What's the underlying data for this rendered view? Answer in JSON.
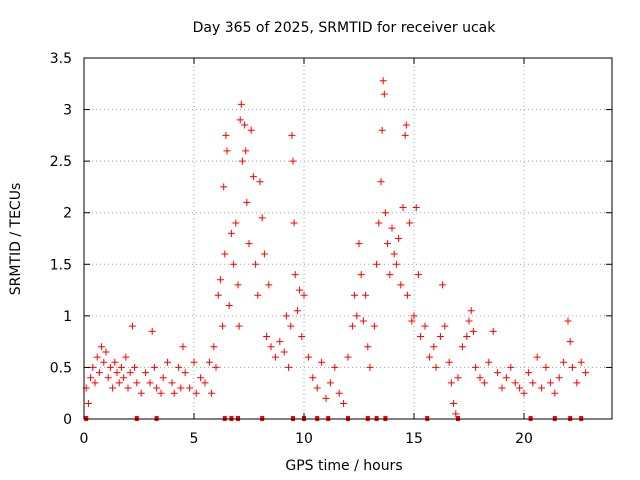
{
  "chart_data": {
    "type": "scatter",
    "title": "Day 365 of 2025, SRMTID for receiver ucak",
    "xlabel": "GPS time / hours",
    "ylabel": "SRMTID / TECUs",
    "xlim": [
      0,
      24
    ],
    "ylim": [
      0,
      3.5
    ],
    "xticks": [
      0,
      5,
      10,
      15,
      20
    ],
    "xtick_labels": [
      "0",
      "5",
      "10",
      "15",
      "20"
    ],
    "yticks": [
      0,
      0.5,
      1,
      1.5,
      2,
      2.5,
      3,
      3.5
    ],
    "ytick_labels": [
      "0",
      "0.5",
      "1",
      "1.5",
      "2",
      "2.5",
      "3",
      "3.5"
    ],
    "grid": true,
    "marker": "+",
    "series": [
      {
        "name": "SRMTID",
        "color": "#ff0000",
        "points": [
          [
            0.1,
            0.3
          ],
          [
            0.2,
            0.15
          ],
          [
            0.3,
            0.4
          ],
          [
            0.4,
            0.5
          ],
          [
            0.5,
            0.35
          ],
          [
            0.6,
            0.6
          ],
          [
            0.7,
            0.45
          ],
          [
            0.8,
            0.7
          ],
          [
            0.9,
            0.55
          ],
          [
            1.0,
            0.65
          ],
          [
            1.1,
            0.4
          ],
          [
            1.2,
            0.5
          ],
          [
            1.3,
            0.3
          ],
          [
            1.4,
            0.55
          ],
          [
            1.5,
            0.45
          ],
          [
            1.6,
            0.35
          ],
          [
            1.7,
            0.5
          ],
          [
            1.8,
            0.4
          ],
          [
            1.9,
            0.6
          ],
          [
            2.0,
            0.3
          ],
          [
            2.1,
            0.45
          ],
          [
            2.2,
            0.9
          ],
          [
            2.3,
            0.5
          ],
          [
            2.4,
            0.35
          ],
          [
            2.6,
            0.25
          ],
          [
            2.8,
            0.45
          ],
          [
            3.0,
            0.35
          ],
          [
            3.1,
            0.85
          ],
          [
            3.2,
            0.5
          ],
          [
            3.3,
            0.3
          ],
          [
            3.5,
            0.25
          ],
          [
            3.6,
            0.4
          ],
          [
            3.8,
            0.55
          ],
          [
            4.0,
            0.35
          ],
          [
            4.1,
            0.25
          ],
          [
            4.3,
            0.5
          ],
          [
            4.4,
            0.3
          ],
          [
            4.5,
            0.7
          ],
          [
            4.6,
            0.45
          ],
          [
            4.8,
            0.3
          ],
          [
            5.0,
            0.55
          ],
          [
            5.1,
            0.25
          ],
          [
            5.3,
            0.4
          ],
          [
            5.5,
            0.35
          ],
          [
            5.7,
            0.55
          ],
          [
            5.8,
            0.25
          ],
          [
            5.9,
            0.7
          ],
          [
            6.0,
            0.5
          ],
          [
            6.1,
            1.2
          ],
          [
            6.2,
            1.35
          ],
          [
            6.3,
            0.9
          ],
          [
            6.35,
            2.25
          ],
          [
            6.4,
            1.6
          ],
          [
            6.45,
            2.75
          ],
          [
            6.5,
            2.6
          ],
          [
            6.6,
            1.1
          ],
          [
            6.7,
            1.8
          ],
          [
            6.8,
            1.5
          ],
          [
            6.9,
            1.9
          ],
          [
            7.0,
            1.3
          ],
          [
            7.05,
            0.9
          ],
          [
            7.1,
            2.9
          ],
          [
            7.15,
            3.05
          ],
          [
            7.2,
            2.5
          ],
          [
            7.3,
            2.85
          ],
          [
            7.35,
            2.6
          ],
          [
            7.4,
            2.1
          ],
          [
            7.5,
            1.7
          ],
          [
            7.6,
            2.8
          ],
          [
            7.7,
            2.35
          ],
          [
            7.8,
            1.5
          ],
          [
            7.9,
            1.2
          ],
          [
            8.0,
            2.3
          ],
          [
            8.1,
            1.95
          ],
          [
            8.2,
            1.6
          ],
          [
            8.3,
            0.8
          ],
          [
            8.4,
            1.3
          ],
          [
            8.5,
            0.7
          ],
          [
            8.7,
            0.6
          ],
          [
            8.9,
            0.75
          ],
          [
            9.1,
            0.65
          ],
          [
            9.2,
            1.0
          ],
          [
            9.3,
            0.5
          ],
          [
            9.4,
            0.9
          ],
          [
            9.45,
            2.75
          ],
          [
            9.5,
            2.5
          ],
          [
            9.55,
            1.9
          ],
          [
            9.6,
            1.4
          ],
          [
            9.7,
            1.05
          ],
          [
            9.8,
            1.25
          ],
          [
            9.9,
            0.8
          ],
          [
            10.0,
            1.2
          ],
          [
            10.2,
            0.6
          ],
          [
            10.4,
            0.4
          ],
          [
            10.6,
            0.3
          ],
          [
            10.8,
            0.55
          ],
          [
            11.0,
            0.2
          ],
          [
            11.2,
            0.35
          ],
          [
            11.4,
            0.5
          ],
          [
            11.6,
            0.25
          ],
          [
            11.8,
            0.15
          ],
          [
            12.0,
            0.6
          ],
          [
            12.2,
            0.9
          ],
          [
            12.3,
            1.2
          ],
          [
            12.4,
            1.0
          ],
          [
            12.5,
            1.7
          ],
          [
            12.6,
            1.4
          ],
          [
            12.7,
            0.95
          ],
          [
            12.8,
            1.2
          ],
          [
            12.9,
            0.7
          ],
          [
            13.0,
            0.5
          ],
          [
            13.2,
            0.9
          ],
          [
            13.3,
            1.5
          ],
          [
            13.4,
            1.9
          ],
          [
            13.5,
            2.3
          ],
          [
            13.55,
            2.8
          ],
          [
            13.6,
            3.28
          ],
          [
            13.65,
            3.15
          ],
          [
            13.7,
            2.0
          ],
          [
            13.8,
            1.7
          ],
          [
            13.9,
            1.4
          ],
          [
            14.0,
            1.85
          ],
          [
            14.1,
            1.6
          ],
          [
            14.2,
            1.5
          ],
          [
            14.3,
            1.75
          ],
          [
            14.4,
            1.3
          ],
          [
            14.5,
            2.05
          ],
          [
            14.6,
            2.75
          ],
          [
            14.65,
            2.85
          ],
          [
            14.7,
            1.2
          ],
          [
            14.8,
            1.9
          ],
          [
            14.9,
            0.95
          ],
          [
            15.0,
            1.0
          ],
          [
            15.1,
            2.05
          ],
          [
            15.2,
            1.4
          ],
          [
            15.3,
            0.8
          ],
          [
            15.5,
            0.9
          ],
          [
            15.7,
            0.6
          ],
          [
            15.9,
            0.7
          ],
          [
            16.0,
            0.5
          ],
          [
            16.2,
            0.8
          ],
          [
            16.3,
            1.3
          ],
          [
            16.4,
            0.9
          ],
          [
            16.6,
            0.55
          ],
          [
            16.7,
            0.35
          ],
          [
            16.8,
            0.15
          ],
          [
            16.9,
            0.05
          ],
          [
            17.0,
            0.4
          ],
          [
            17.2,
            0.7
          ],
          [
            17.4,
            0.8
          ],
          [
            17.5,
            0.95
          ],
          [
            17.6,
            1.05
          ],
          [
            17.7,
            0.85
          ],
          [
            17.8,
            0.5
          ],
          [
            18.0,
            0.4
          ],
          [
            18.2,
            0.35
          ],
          [
            18.4,
            0.55
          ],
          [
            18.6,
            0.85
          ],
          [
            18.8,
            0.45
          ],
          [
            19.0,
            0.3
          ],
          [
            19.2,
            0.4
          ],
          [
            19.4,
            0.5
          ],
          [
            19.6,
            0.35
          ],
          [
            19.8,
            0.3
          ],
          [
            20.0,
            0.25
          ],
          [
            20.2,
            0.45
          ],
          [
            20.4,
            0.35
          ],
          [
            20.6,
            0.6
          ],
          [
            20.8,
            0.3
          ],
          [
            21.0,
            0.5
          ],
          [
            21.2,
            0.35
          ],
          [
            21.4,
            0.25
          ],
          [
            21.6,
            0.4
          ],
          [
            21.8,
            0.55
          ],
          [
            22.0,
            0.95
          ],
          [
            22.1,
            0.75
          ],
          [
            22.2,
            0.5
          ],
          [
            22.4,
            0.35
          ],
          [
            22.6,
            0.55
          ],
          [
            22.8,
            0.45
          ]
        ]
      }
    ],
    "baseline_markers_x": [
      0.1,
      2.4,
      3.3,
      6.4,
      6.7,
      7.0,
      8.1,
      9.5,
      10.0,
      10.6,
      11.1,
      12.0,
      12.9,
      13.3,
      13.7,
      15.6,
      17.0,
      20.3,
      21.4,
      22.1,
      22.6
    ]
  }
}
